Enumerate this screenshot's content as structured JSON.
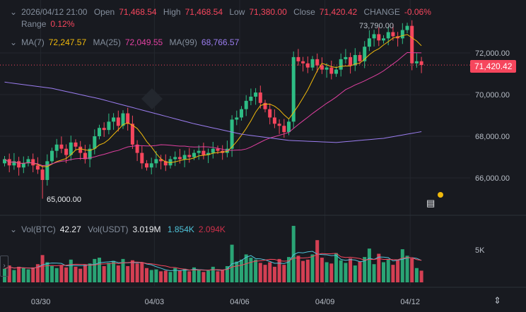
{
  "legend": {
    "datetime": "2026/04/12 21:00",
    "open_label": "Open",
    "open": "71,468.54",
    "high_label": "High",
    "high": "71,468.54",
    "low_label": "Low",
    "low": "71,380.00",
    "close_label": "Close",
    "close": "71,420.42",
    "change_label": "CHANGE",
    "change": "-0.06%",
    "range_label": "Range",
    "range": "0.12%"
  },
  "ma_legend": {
    "ma7_label": "MA(7)",
    "ma7": "72,247.57",
    "ma25_label": "MA(25)",
    "ma25": "72,049.55",
    "ma99_label": "MA(99)",
    "ma99": "68,766.57"
  },
  "vol_legend": {
    "vol_btc_label": "Vol(BTC)",
    "vol_btc": "42.27",
    "vol_usdt_label": "Vol(USDT)",
    "vol_usdt": "3.019M",
    "ma5": "1.854K",
    "ma10": "2.094K"
  },
  "colors": {
    "up": "#2ebd85",
    "down": "#f6465d",
    "ma7": "#f0b90b",
    "ma25": "#e040a0",
    "ma99": "#9b7df0",
    "vol_ma5": "#4fc3d9",
    "vol_ma10": "#f6465d"
  },
  "chart_data": {
    "type": "candlestick",
    "price_ticks": [
      "72,000.00",
      "70,000.00",
      "68,000.00",
      "66,000.00"
    ],
    "price_tick_values": [
      72000,
      70000,
      68000,
      66000
    ],
    "x_ticks": [
      "03/30",
      "04/03",
      "04/06",
      "04/09",
      "04/12"
    ],
    "x_tick_index": [
      8,
      32,
      50,
      68,
      86
    ],
    "ylim": [
      64500,
      74000
    ],
    "closes": [
      66900,
      66600,
      66800,
      66500,
      66700,
      66900,
      66600,
      66400,
      65900,
      66800,
      67300,
      67600,
      67400,
      67100,
      67700,
      67500,
      67200,
      66900,
      67400,
      68000,
      68400,
      68300,
      68700,
      68900,
      68500,
      69100,
      68600,
      67600,
      67200,
      66700,
      66500,
      66700,
      66900,
      66800,
      66600,
      66900,
      67000,
      66900,
      67100,
      67000,
      67200,
      67300,
      67100,
      67200,
      67400,
      67300,
      67200,
      67400,
      68800,
      68900,
      69300,
      69700,
      69900,
      70100,
      69600,
      69300,
      68900,
      68600,
      68500,
      68200,
      68700,
      71800,
      71600,
      71500,
      71300,
      71700,
      71400,
      71200,
      71300,
      71000,
      71200,
      71700,
      71800,
      71400,
      71900,
      71600,
      72300,
      72700,
      72900,
      72600,
      72700,
      73000,
      72800,
      72700,
      73100,
      73300,
      71500,
      71600,
      71420
    ],
    "first_open": 66700,
    "ma99_every10": [
      70600,
      70300,
      69800,
      69200,
      68600,
      68100,
      67800,
      67700,
      67900,
      68300,
      68700
    ],
    "annotations": {
      "high": "73,790.00",
      "low": "65,000.00"
    },
    "last_price": "71,420.42",
    "volume_ticks": [
      "5K"
    ],
    "volume_tick_values": [
      5000
    ],
    "volumes": [
      2100,
      2600,
      1900,
      2400,
      2200,
      2000,
      2300,
      2800,
      4200,
      3100,
      2500,
      2200,
      2600,
      2300,
      3500,
      2400,
      2100,
      2700,
      2900,
      3600,
      3800,
      2500,
      3000,
      3300,
      2600,
      3600,
      2500,
      3400,
      2900,
      3100,
      2200,
      1900,
      2000,
      1700,
      1800,
      1600,
      2200,
      1800,
      2100,
      1700,
      2300,
      1900,
      1600,
      1800,
      2400,
      1700,
      1900,
      2500,
      5800,
      3200,
      3500,
      4300,
      3800,
      3500,
      3000,
      2700,
      3100,
      2400,
      3600,
      2700,
      3900,
      8700,
      4100,
      3300,
      3500,
      4300,
      6500,
      3800,
      3100,
      2900,
      4500,
      3400,
      3000,
      3700,
      2600,
      3200,
      3900,
      5200,
      2800,
      4400,
      3100,
      3500,
      2700,
      3400,
      5100,
      4100,
      3700,
      2200,
      1800
    ]
  }
}
